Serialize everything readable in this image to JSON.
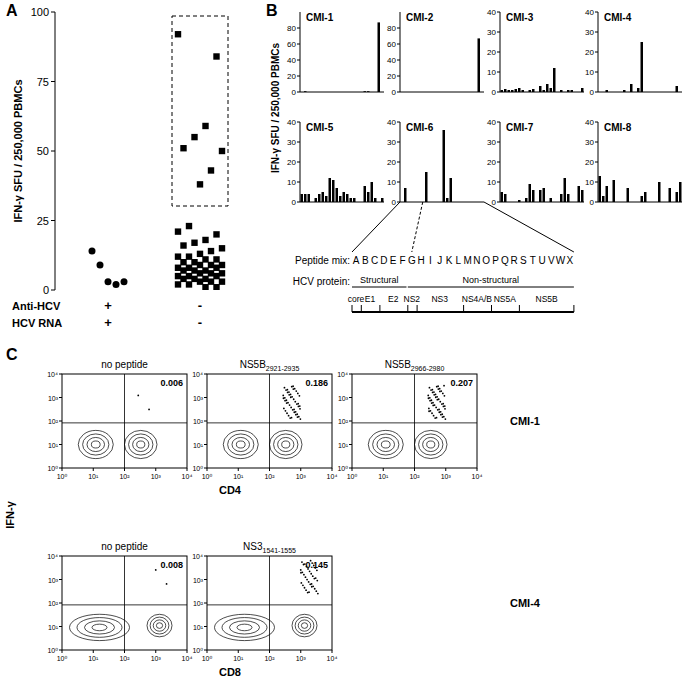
{
  "panels": [
    "A",
    "B",
    "C"
  ],
  "chart_data": [
    {
      "type": "scatter",
      "y_label": "IFN-γ SFU / 250,000 PBMCs",
      "ylim": [
        0,
        100
      ],
      "yticks": [
        0,
        25,
        50,
        75,
        100
      ],
      "x_rows": [
        {
          "label": "Anti-HCV",
          "values": [
            "+",
            "-"
          ]
        },
        {
          "label": "HCV RNA",
          "values": [
            "+",
            "-"
          ]
        }
      ],
      "series": [
        {
          "marker": "circle",
          "color": "#000000",
          "values": [
            14,
            9,
            3,
            2,
            3
          ]
        },
        {
          "marker": "square",
          "color": "#000000",
          "values": [
            92,
            84,
            59,
            55,
            51,
            50,
            43,
            38,
            23,
            21,
            20,
            18,
            17,
            16,
            15,
            14,
            13,
            12,
            12,
            11,
            11,
            10,
            10,
            9,
            9,
            9,
            8,
            8,
            8,
            7,
            7,
            7,
            6,
            6,
            6,
            5,
            5,
            5,
            4,
            4,
            4,
            3,
            3,
            3,
            2,
            2,
            1,
            1
          ]
        }
      ]
    },
    {
      "type": "bar",
      "title": "CMI-1",
      "y_label": "IFN-γ SFU / 250,000 PBMCs",
      "ylim": [
        0,
        100
      ],
      "yticks": [
        0,
        20,
        40,
        60,
        80
      ],
      "color": "#000000",
      "values": [
        0,
        1,
        0,
        0,
        0,
        0,
        0,
        0,
        0,
        0,
        0,
        0,
        0,
        0,
        0,
        0,
        0,
        0,
        1,
        1,
        0,
        0,
        87,
        0
      ]
    },
    {
      "type": "bar",
      "title": "CMI-2",
      "ylim": [
        0,
        100
      ],
      "yticks": [
        0,
        20,
        40,
        60,
        80
      ],
      "color": "#000000",
      "values": [
        0,
        0,
        0,
        0,
        0,
        0,
        0,
        0,
        0,
        0,
        0,
        0,
        0,
        0,
        0,
        0,
        0,
        0,
        0,
        0,
        0,
        0,
        67,
        0
      ]
    },
    {
      "type": "bar",
      "title": "CMI-3",
      "ylim": [
        0,
        40
      ],
      "yticks": [
        0,
        10,
        20,
        30,
        40
      ],
      "color": "#000000",
      "values": [
        1,
        1.5,
        1,
        1,
        1.5,
        2,
        1,
        0,
        1,
        1.5,
        0,
        3,
        1,
        4,
        2,
        12,
        0,
        1,
        0,
        1,
        1,
        0,
        0,
        2
      ]
    },
    {
      "type": "bar",
      "title": "CMI-4",
      "ylim": [
        0,
        40
      ],
      "yticks": [
        0,
        10,
        20,
        30,
        40
      ],
      "color": "#000000",
      "values": [
        0,
        0,
        1,
        0,
        0,
        0,
        0,
        1,
        0,
        4,
        0,
        2,
        25,
        0,
        0,
        0,
        0,
        0,
        0,
        0,
        0,
        0,
        3,
        0
      ]
    },
    {
      "type": "bar",
      "title": "CMI-5",
      "ylim": [
        0,
        40
      ],
      "yticks": [
        0,
        10,
        20,
        30,
        40
      ],
      "color": "#000000",
      "values": [
        4,
        4,
        4,
        0,
        2,
        4,
        5,
        3,
        12,
        11,
        7,
        3,
        5,
        4,
        2,
        2,
        0,
        0,
        8,
        5,
        10,
        2,
        0,
        2
      ]
    },
    {
      "type": "bar",
      "title": "CMI-6",
      "ylim": [
        0,
        40
      ],
      "yticks": [
        0,
        10,
        20,
        30,
        40
      ],
      "color": "#000000",
      "values": [
        0,
        7,
        0,
        0,
        0,
        0,
        0,
        15,
        0,
        0,
        0,
        0,
        36,
        2,
        12,
        0,
        0,
        0,
        0,
        0,
        0,
        0,
        0,
        0
      ]
    },
    {
      "type": "bar",
      "title": "CMI-7",
      "ylim": [
        0,
        40
      ],
      "yticks": [
        0,
        10,
        20,
        30,
        40
      ],
      "color": "#000000",
      "values": [
        5,
        4,
        0,
        0,
        0,
        1,
        0,
        2,
        9,
        6,
        0,
        6,
        7,
        0,
        2,
        0,
        0,
        4,
        12,
        4,
        0,
        0,
        8,
        6
      ]
    },
    {
      "type": "bar",
      "title": "CMI-8",
      "ylim": [
        0,
        40
      ],
      "yticks": [
        0,
        10,
        20,
        30,
        40
      ],
      "color": "#000000",
      "values": [
        13,
        3,
        8,
        0,
        11,
        0,
        0,
        0,
        7,
        0,
        0,
        0,
        3,
        5,
        0,
        0,
        0,
        10,
        0,
        0,
        7,
        0,
        5,
        10
      ]
    }
  ],
  "peptide_map": {
    "mix_label": "Peptide mix:",
    "mixes": [
      "A",
      "B",
      "C",
      "D",
      "E",
      "F",
      "G",
      "H",
      "I",
      "J",
      "K",
      "L",
      "M",
      "N",
      "O",
      "P",
      "Q",
      "R",
      "S",
      "T",
      "U",
      "V",
      "W",
      "X"
    ],
    "protein_label": "HCV protein:",
    "groups": [
      "Structural",
      "Non-structural"
    ],
    "proteins": [
      "core",
      "E1",
      "E2",
      "NS2",
      "NS3",
      "NS4A/B",
      "NS5A",
      "NS5B"
    ]
  },
  "flow": {
    "y_label": "IFN-γ",
    "axis_ticks": [
      "10⁰",
      "10¹",
      "10²",
      "10³",
      "10⁴"
    ],
    "rows": [
      {
        "donor": "CMI-1",
        "x_label": "CD4",
        "plots": [
          {
            "title": "no peptide",
            "percent": 0.006
          },
          {
            "title": "NS5B",
            "title_sub": "2921-2935",
            "percent": 0.186
          },
          {
            "title": "NS5B",
            "title_sub": "2966-2980",
            "percent": 0.207
          }
        ]
      },
      {
        "donor": "CMI-4",
        "x_label": "CD8",
        "plots": [
          {
            "title": "no peptide",
            "percent": 0.008
          },
          {
            "title": "NS3",
            "title_sub": "1541-1555",
            "percent": 0.145
          }
        ]
      }
    ]
  }
}
